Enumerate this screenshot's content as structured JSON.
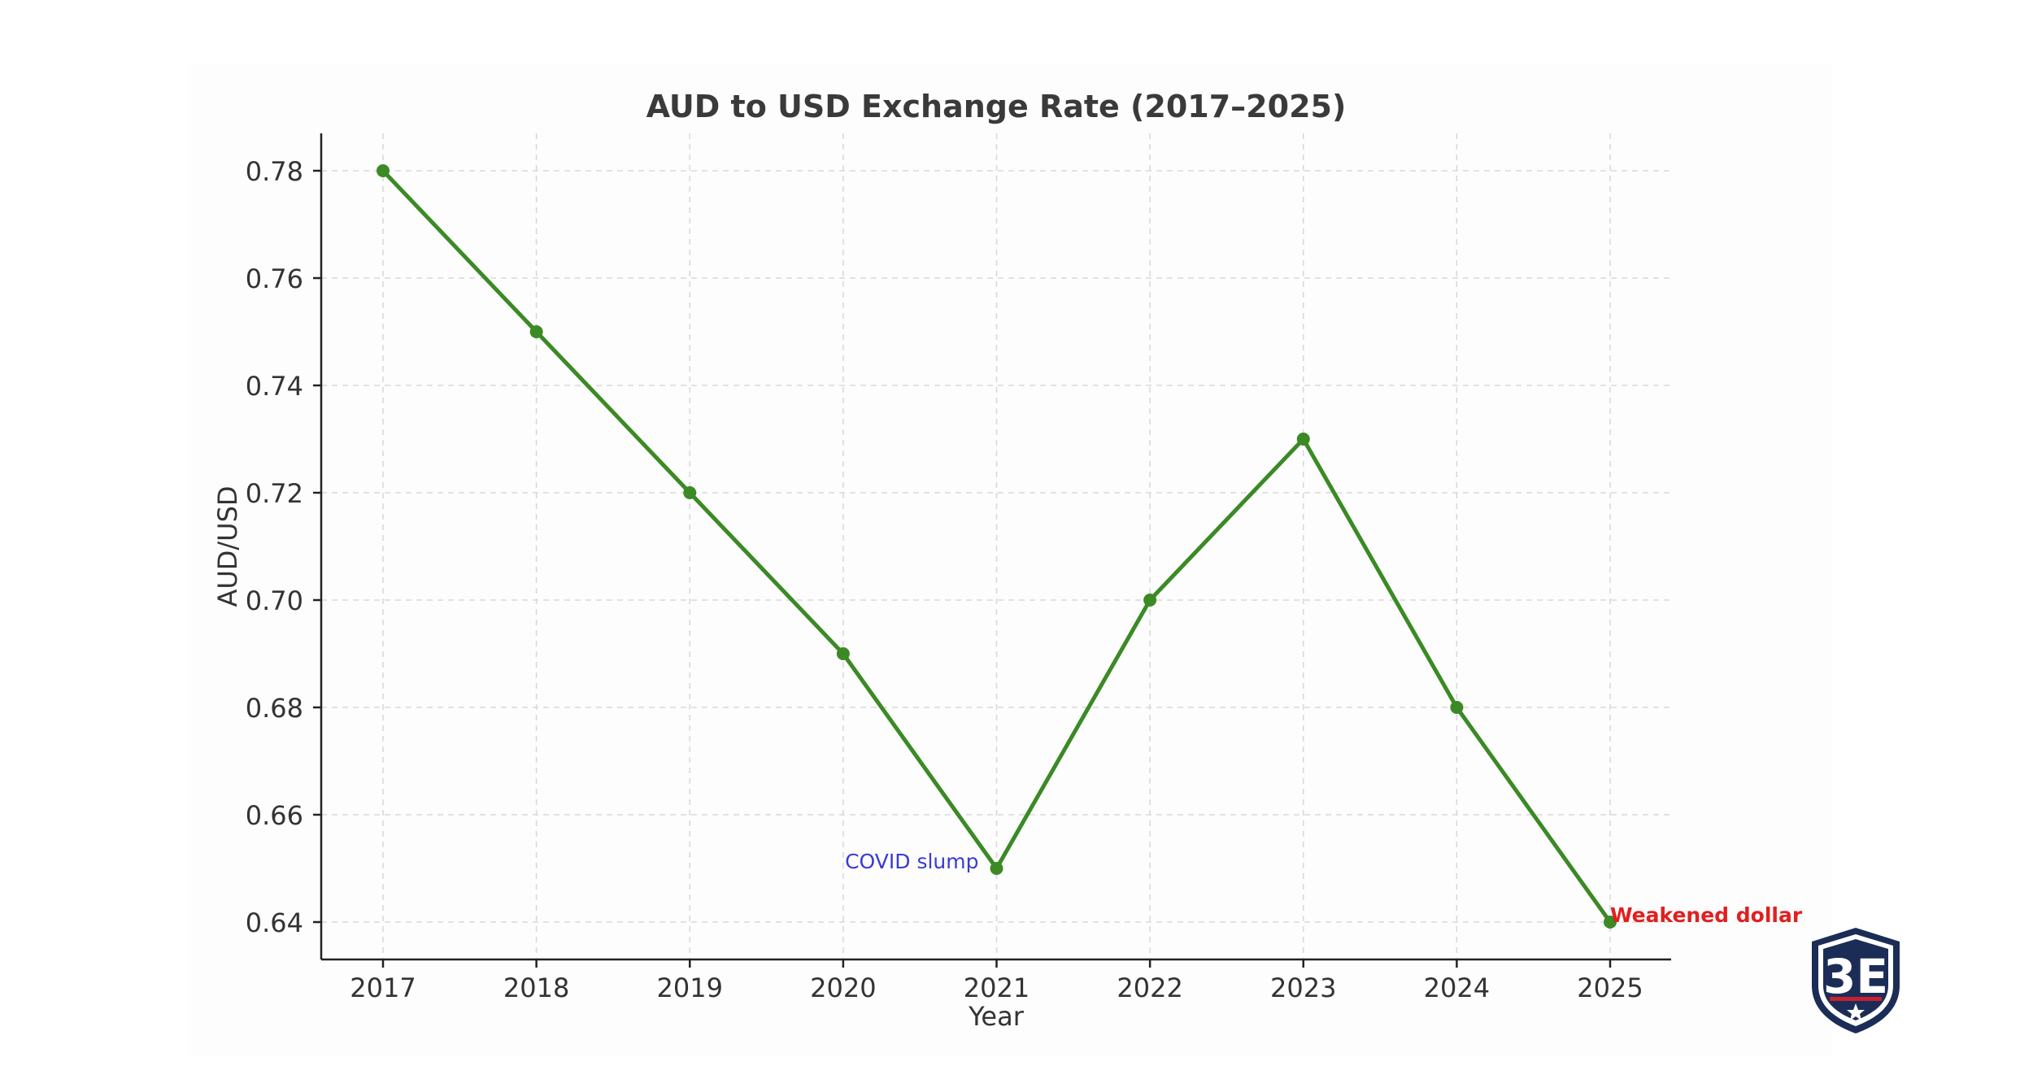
{
  "chart_data": {
    "type": "line",
    "title": "AUD to USD Exchange Rate (2017–2025)",
    "xlabel": "Year",
    "ylabel": "AUD/USD",
    "categories": [
      "2017",
      "2018",
      "2019",
      "2020",
      "2021",
      "2022",
      "2023",
      "2024",
      "2025"
    ],
    "series": [
      {
        "values": [
          0.78,
          0.75,
          0.72,
          0.69,
          0.65,
          0.7,
          0.73,
          0.68,
          0.64
        ]
      }
    ],
    "ylim": [
      0.633,
      0.787
    ],
    "yticks": [
      "0.64",
      "0.66",
      "0.68",
      "0.70",
      "0.72",
      "0.74",
      "0.76",
      "0.78"
    ],
    "grid": true,
    "annotations": [
      {
        "text": "COVID slump",
        "x": "2021",
        "y": 0.65,
        "color": "#3a3ad6"
      },
      {
        "text": "Weakened dollar",
        "x": "2025",
        "y": 0.64,
        "color": "#e02020"
      }
    ],
    "line_color": "#3b8a25"
  },
  "logo": {
    "text": "3E",
    "icon": "shield-star-logo",
    "colors": {
      "navy": "#1b2d57",
      "red": "#c8202f"
    }
  }
}
